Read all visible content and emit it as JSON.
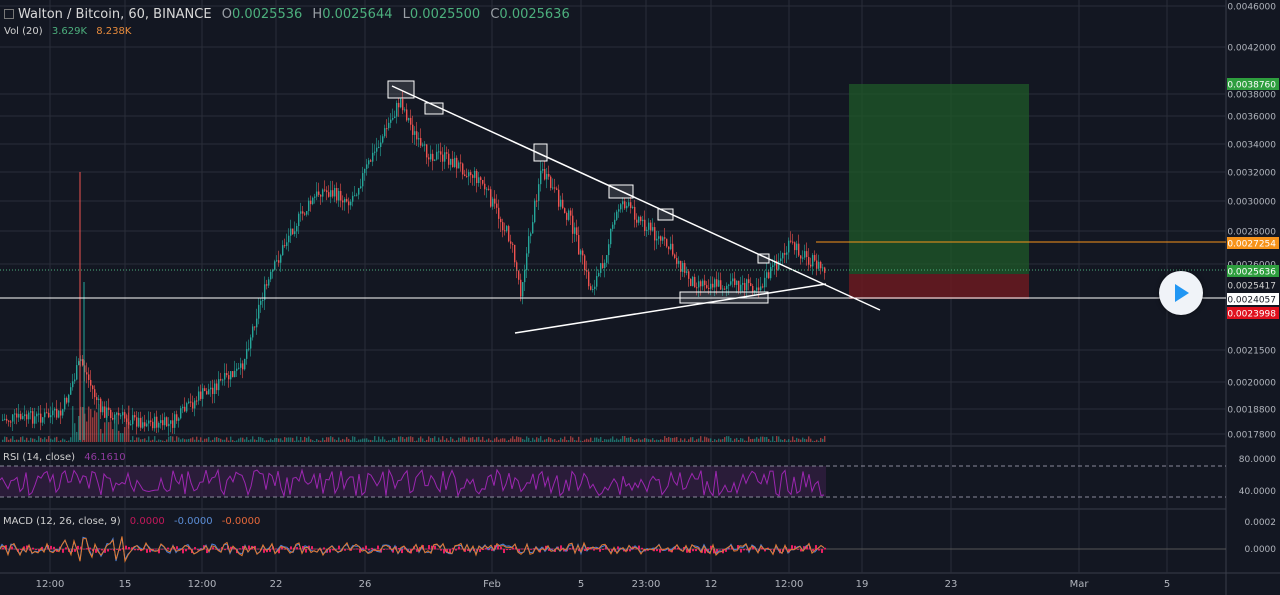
{
  "header": {
    "symbol": "Walton / Bitcoin, 60, BINANCE",
    "o_key": "O",
    "o_val": "0.0025536",
    "h_key": "H",
    "h_val": "0.0025644",
    "l_key": "L",
    "l_val": "0.0025500",
    "c_key": "C",
    "c_val": "0.0025636"
  },
  "volume": {
    "label": "Vol (20)",
    "v1": "3.629K",
    "v2": "8.238K"
  },
  "rsi": {
    "label": "RSI (14, close)",
    "value": "46.1610"
  },
  "macd": {
    "label": "MACD (12, 26, close, 9)",
    "v1": "0.0000",
    "v2": "-0.0000",
    "v3": "-0.0000"
  },
  "colors": {
    "background": "#131722",
    "grid": "#2a2e39",
    "up": "#26a69a",
    "down": "#ef5350",
    "take_profit": "#2e7d32",
    "stop_loss": "#8b1e24",
    "entry": "#ffffff",
    "orange": "#f7931a"
  },
  "chart_data": {
    "type": "candlestick",
    "y_ticks": [
      "0.0046000",
      "0.0042000",
      "0.0038000",
      "0.0036000",
      "0.0034000",
      "0.0032000",
      "0.0030000",
      "0.0028000",
      "0.0026000",
      "0.0021500",
      "0.0020000",
      "0.0018800",
      "0.0017800"
    ],
    "x_ticks": [
      "12:00",
      "15",
      "12:00",
      "22",
      "26",
      "Feb",
      "5",
      "23:00",
      "12",
      "12:00",
      "19",
      "23",
      "Mar",
      "5"
    ],
    "price_tags": [
      {
        "text": "0.0038760",
        "color": "#2e9e3e"
      },
      {
        "text": "0.0027254",
        "color": "#f7931a"
      },
      {
        "text": "0.0025636",
        "color": "#2e9e3e"
      },
      {
        "text": "0.0025417",
        "color": "#131722"
      },
      {
        "text": "0.0024057",
        "color": "#ffffff"
      },
      {
        "text": "0.0023998",
        "color": "#e0111e"
      }
    ],
    "rsi_ticks": [
      "80.0000",
      "40.0000"
    ],
    "macd_ticks": [
      "0.0002",
      "0.0000"
    ],
    "position": {
      "take_profit": "0.0038760",
      "entry": "0.0025636",
      "stop": "0.0023998"
    }
  }
}
